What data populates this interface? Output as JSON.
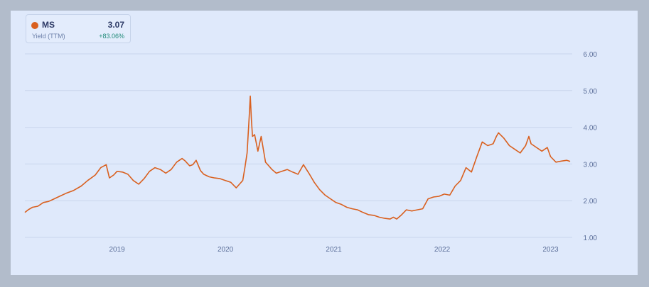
{
  "legend": {
    "ticker": "MS",
    "value": "3.07",
    "metric": "Yield (TTM)",
    "change": "+83.06%"
  },
  "colors": {
    "series": "#d9601f",
    "positive": "#1f8a78",
    "grid": "#c9d5ec"
  },
  "chart_data": {
    "type": "line",
    "title": "",
    "xlabel": "",
    "ylabel": "",
    "ylim": [
      1.0,
      6.0
    ],
    "y_ticks": [
      "1.00",
      "2.00",
      "3.00",
      "4.00",
      "5.00",
      "6.00"
    ],
    "x_ticks": [
      "2019",
      "2020",
      "2021",
      "2022",
      "2023"
    ],
    "x_range": [
      2018.15,
      2023.2
    ],
    "grid": true,
    "legend_position": "top-left",
    "series": [
      {
        "name": "MS",
        "x": [
          2018.15,
          2018.18,
          2018.22,
          2018.27,
          2018.32,
          2018.37,
          2018.42,
          2018.47,
          2018.53,
          2018.6,
          2018.67,
          2018.73,
          2018.8,
          2018.85,
          2018.9,
          2018.93,
          2018.97,
          2019.0,
          2019.05,
          2019.1,
          2019.15,
          2019.2,
          2019.25,
          2019.3,
          2019.35,
          2019.4,
          2019.45,
          2019.5,
          2019.55,
          2019.6,
          2019.63,
          2019.67,
          2019.7,
          2019.73,
          2019.77,
          2019.8,
          2019.85,
          2019.9,
          2019.95,
          2020.0,
          2020.05,
          2020.1,
          2020.13,
          2020.16,
          2020.18,
          2020.2,
          2020.22,
          2020.23,
          2020.24,
          2020.25,
          2020.27,
          2020.3,
          2020.33,
          2020.37,
          2020.4,
          2020.43,
          2020.47,
          2020.52,
          2020.57,
          2020.62,
          2020.67,
          2020.72,
          2020.77,
          2020.82,
          2020.87,
          2020.92,
          2020.97,
          2021.02,
          2021.07,
          2021.12,
          2021.17,
          2021.22,
          2021.27,
          2021.32,
          2021.37,
          2021.42,
          2021.47,
          2021.52,
          2021.55,
          2021.58,
          2021.62,
          2021.67,
          2021.72,
          2021.77,
          2021.82,
          2021.87,
          2021.92,
          2021.97,
          2022.02,
          2022.07,
          2022.12,
          2022.17,
          2022.22,
          2022.27,
          2022.32,
          2022.37,
          2022.42,
          2022.47,
          2022.5,
          2022.52,
          2022.57,
          2022.62,
          2022.67,
          2022.72,
          2022.77,
          2022.8,
          2022.82,
          2022.87,
          2022.92,
          2022.97,
          2023.0,
          2023.05,
          2023.1,
          2023.15,
          2023.18
        ],
        "values": [
          1.68,
          1.75,
          1.82,
          1.85,
          1.95,
          1.98,
          2.05,
          2.12,
          2.2,
          2.28,
          2.4,
          2.55,
          2.7,
          2.9,
          2.98,
          2.62,
          2.7,
          2.8,
          2.78,
          2.72,
          2.55,
          2.45,
          2.6,
          2.8,
          2.9,
          2.85,
          2.75,
          2.85,
          3.05,
          3.15,
          3.08,
          2.95,
          2.98,
          3.1,
          2.82,
          2.72,
          2.65,
          2.62,
          2.6,
          2.55,
          2.5,
          2.35,
          2.45,
          2.55,
          2.9,
          3.3,
          4.3,
          4.85,
          4.2,
          3.75,
          3.8,
          3.35,
          3.75,
          3.05,
          2.95,
          2.85,
          2.75,
          2.8,
          2.85,
          2.78,
          2.72,
          2.98,
          2.75,
          2.5,
          2.3,
          2.15,
          2.05,
          1.95,
          1.9,
          1.82,
          1.78,
          1.75,
          1.68,
          1.62,
          1.6,
          1.55,
          1.52,
          1.5,
          1.55,
          1.5,
          1.6,
          1.75,
          1.72,
          1.75,
          1.78,
          2.05,
          2.1,
          2.12,
          2.18,
          2.15,
          2.4,
          2.55,
          2.9,
          2.78,
          3.2,
          3.6,
          3.5,
          3.55,
          3.75,
          3.85,
          3.7,
          3.5,
          3.4,
          3.3,
          3.5,
          3.75,
          3.55,
          3.45,
          3.35,
          3.45,
          3.2,
          3.05,
          3.08,
          3.1,
          3.07
        ]
      }
    ]
  }
}
